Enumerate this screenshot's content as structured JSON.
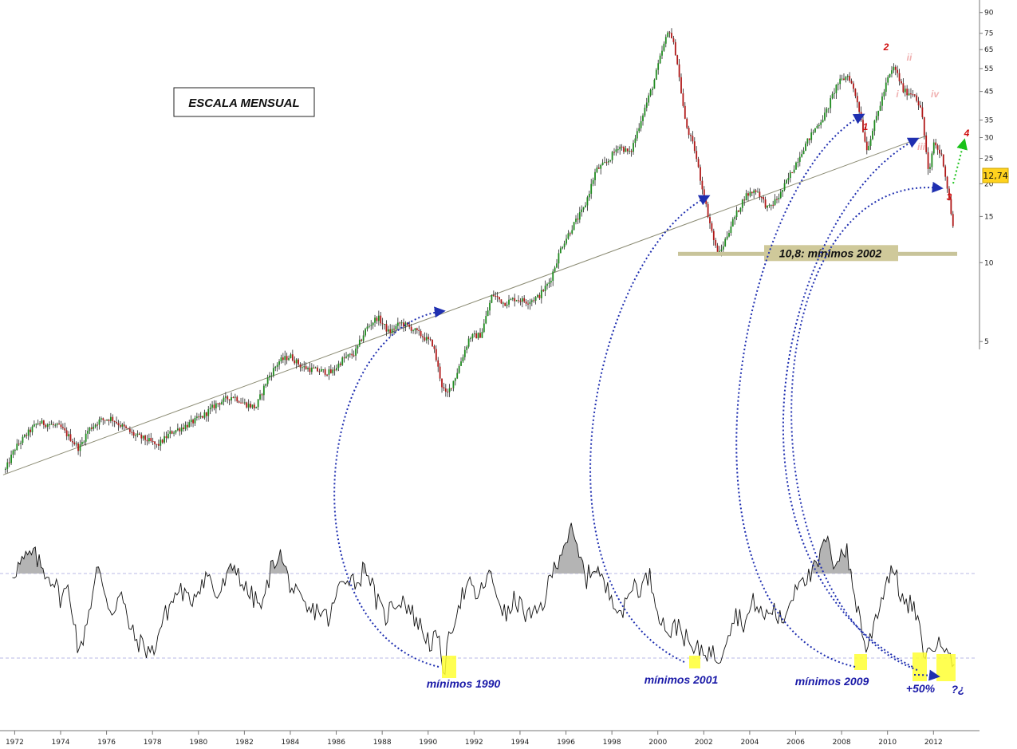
{
  "chart_data": [
    {
      "type": "candlestick",
      "panel": "price",
      "scale": "log",
      "annotation_box": "ESCALA MENSUAL",
      "support_label": "10,8: mínimos 2002",
      "support_level": 10.8,
      "price_tag": "12,74",
      "last_value": 12.74,
      "xlim": [
        1971.5,
        2013.9
      ],
      "ylim": [
        1.5,
        95
      ],
      "x_ticks": [
        "1972",
        "1974",
        "1976",
        "1978",
        "1980",
        "1982",
        "1984",
        "1986",
        "1988",
        "1990",
        "1992",
        "1994",
        "1996",
        "1998",
        "2000",
        "2002",
        "2004",
        "2006",
        "2008",
        "2010",
        "2012"
      ],
      "y_ticks": [
        "90",
        "75",
        "65",
        "55",
        "45",
        "35",
        "30",
        "25",
        "20",
        "15",
        "10",
        "5"
      ],
      "wave_labels": [
        "1",
        "2",
        "3",
        "4",
        "i",
        "ii",
        "iii",
        "iv"
      ],
      "price_path": [
        [
          1971.6,
          1.62
        ],
        [
          1972.0,
          1.95
        ],
        [
          1972.5,
          2.2
        ],
        [
          1973.0,
          2.45
        ],
        [
          1973.5,
          2.42
        ],
        [
          1974.0,
          2.35
        ],
        [
          1974.5,
          2.1
        ],
        [
          1974.8,
          1.95
        ],
        [
          1975.2,
          2.3
        ],
        [
          1975.7,
          2.5
        ],
        [
          1976.2,
          2.55
        ],
        [
          1976.6,
          2.4
        ],
        [
          1977.2,
          2.2
        ],
        [
          1977.8,
          2.1
        ],
        [
          1978.2,
          2.0
        ],
        [
          1978.8,
          2.25
        ],
        [
          1979.5,
          2.4
        ],
        [
          1980.2,
          2.6
        ],
        [
          1980.8,
          2.9
        ],
        [
          1981.5,
          3.1
        ],
        [
          1982.0,
          2.9
        ],
        [
          1982.5,
          2.8
        ],
        [
          1983.0,
          3.6
        ],
        [
          1983.5,
          4.2
        ],
        [
          1984.0,
          4.4
        ],
        [
          1984.5,
          4.0
        ],
        [
          1985.0,
          3.9
        ],
        [
          1985.8,
          3.8
        ],
        [
          1986.3,
          4.3
        ],
        [
          1986.8,
          4.5
        ],
        [
          1987.3,
          5.6
        ],
        [
          1987.8,
          6.2
        ],
        [
          1988.3,
          5.4
        ],
        [
          1988.8,
          5.9
        ],
        [
          1989.3,
          5.6
        ],
        [
          1989.8,
          5.2
        ],
        [
          1990.2,
          4.9
        ],
        [
          1990.6,
          3.4
        ],
        [
          1990.8,
          3.1
        ],
        [
          1991.2,
          3.7
        ],
        [
          1991.8,
          5.2
        ],
        [
          1992.3,
          5.3
        ],
        [
          1992.8,
          7.6
        ],
        [
          1993.3,
          7.0
        ],
        [
          1993.8,
          7.3
        ],
        [
          1994.3,
          7.1
        ],
        [
          1994.8,
          7.4
        ],
        [
          1995.3,
          8.5
        ],
        [
          1995.8,
          11.5
        ],
        [
          1996.3,
          13.8
        ],
        [
          1996.8,
          16.2
        ],
        [
          1997.3,
          22.5
        ],
        [
          1997.8,
          24.2
        ],
        [
          1998.3,
          28.0
        ],
        [
          1998.8,
          26.0
        ],
        [
          1999.3,
          36.0
        ],
        [
          1999.8,
          48.0
        ],
        [
          2000.2,
          65.0
        ],
        [
          2000.5,
          78.0
        ],
        [
          2000.8,
          62.0
        ],
        [
          2001.2,
          34.0
        ],
        [
          2001.6,
          27.0
        ],
        [
          2002.0,
          18.0
        ],
        [
          2002.5,
          11.5
        ],
        [
          2002.7,
          10.8
        ],
        [
          2003.2,
          14.0
        ],
        [
          2003.8,
          18.0
        ],
        [
          2004.3,
          19.0
        ],
        [
          2004.8,
          16.0
        ],
        [
          2005.3,
          18.0
        ],
        [
          2005.8,
          22.0
        ],
        [
          2006.3,
          27.0
        ],
        [
          2006.8,
          32.0
        ],
        [
          2007.3,
          37.0
        ],
        [
          2007.8,
          48.0
        ],
        [
          2008.3,
          52.0
        ],
        [
          2008.7,
          41.0
        ],
        [
          2009.1,
          27.0
        ],
        [
          2009.6,
          38.0
        ],
        [
          2010.0,
          50.0
        ],
        [
          2010.3,
          56.0
        ],
        [
          2010.7,
          45.0
        ],
        [
          2011.2,
          44.0
        ],
        [
          2011.5,
          37.0
        ],
        [
          2011.8,
          21.0
        ],
        [
          2012.0,
          29.0
        ],
        [
          2012.4,
          25.0
        ],
        [
          2012.7,
          17.0
        ],
        [
          2012.9,
          12.74
        ]
      ],
      "trendline": [
        [
          1971.5,
          1.55
        ],
        [
          2011.7,
          30.5
        ]
      ]
    },
    {
      "type": "line",
      "panel": "oscillator",
      "series": [
        {
          "values": [
            [
              1971.9,
              0.86
            ],
            [
              1972.4,
              0.98
            ],
            [
              1972.8,
              1.05
            ],
            [
              1973.2,
              0.9
            ],
            [
              1973.7,
              0.78
            ],
            [
              1974.0,
              0.6
            ],
            [
              1974.3,
              0.7
            ],
            [
              1974.6,
              0.4
            ],
            [
              1974.8,
              0.0
            ],
            [
              1975.1,
              0.35
            ],
            [
              1975.4,
              0.65
            ],
            [
              1975.6,
              0.9
            ],
            [
              1975.9,
              0.7
            ],
            [
              1976.2,
              0.45
            ],
            [
              1976.6,
              0.65
            ],
            [
              1976.9,
              0.4
            ],
            [
              1977.2,
              0.2
            ],
            [
              1977.6,
              0.12
            ],
            [
              1978.0,
              0.05
            ],
            [
              1978.4,
              0.35
            ],
            [
              1978.8,
              0.55
            ],
            [
              1979.2,
              0.7
            ],
            [
              1979.6,
              0.55
            ],
            [
              1980.0,
              0.72
            ],
            [
              1980.4,
              0.85
            ],
            [
              1980.8,
              0.6
            ],
            [
              1981.2,
              0.78
            ],
            [
              1981.6,
              0.95
            ],
            [
              1982.0,
              0.7
            ],
            [
              1982.4,
              0.6
            ],
            [
              1982.8,
              0.5
            ],
            [
              1983.1,
              0.85
            ],
            [
              1983.5,
              1.08
            ],
            [
              1983.9,
              0.8
            ],
            [
              1984.3,
              0.6
            ],
            [
              1984.8,
              0.45
            ],
            [
              1985.2,
              0.5
            ],
            [
              1985.7,
              0.38
            ],
            [
              1986.1,
              0.7
            ],
            [
              1986.5,
              0.85
            ],
            [
              1986.9,
              0.75
            ],
            [
              1987.3,
              0.95
            ],
            [
              1987.7,
              0.6
            ],
            [
              1988.1,
              0.4
            ],
            [
              1988.5,
              0.55
            ],
            [
              1988.9,
              0.6
            ],
            [
              1989.3,
              0.45
            ],
            [
              1989.7,
              0.3
            ],
            [
              1990.1,
              0.15
            ],
            [
              1990.4,
              0.2
            ],
            [
              1990.7,
              -0.12
            ],
            [
              1991.0,
              0.3
            ],
            [
              1991.4,
              0.6
            ],
            [
              1991.8,
              0.72
            ],
            [
              1992.2,
              0.6
            ],
            [
              1992.6,
              0.85
            ],
            [
              1993.0,
              0.65
            ],
            [
              1993.4,
              0.4
            ],
            [
              1993.8,
              0.6
            ],
            [
              1994.2,
              0.45
            ],
            [
              1994.6,
              0.4
            ],
            [
              1995.0,
              0.55
            ],
            [
              1995.4,
              0.85
            ],
            [
              1995.8,
              1.1
            ],
            [
              1996.2,
              1.28
            ],
            [
              1996.6,
              1.0
            ],
            [
              1996.9,
              0.8
            ],
            [
              1997.3,
              0.95
            ],
            [
              1997.7,
              0.7
            ],
            [
              1998.1,
              0.6
            ],
            [
              1998.5,
              0.45
            ],
            [
              1998.9,
              0.75
            ],
            [
              1999.3,
              0.7
            ],
            [
              1999.6,
              0.85
            ],
            [
              1999.9,
              0.6
            ],
            [
              2000.2,
              0.35
            ],
            [
              2000.6,
              0.25
            ],
            [
              2000.9,
              0.35
            ],
            [
              2001.3,
              0.15
            ],
            [
              2001.6,
              0.05
            ],
            [
              2001.9,
              0.1
            ],
            [
              2002.3,
              0.05
            ],
            [
              2002.7,
              0.0
            ],
            [
              2003.0,
              0.25
            ],
            [
              2003.4,
              0.45
            ],
            [
              2003.8,
              0.35
            ],
            [
              2004.2,
              0.58
            ],
            [
              2004.6,
              0.4
            ],
            [
              2005.0,
              0.5
            ],
            [
              2005.4,
              0.35
            ],
            [
              2005.8,
              0.6
            ],
            [
              2006.2,
              0.85
            ],
            [
              2006.6,
              0.8
            ],
            [
              2007.0,
              0.95
            ],
            [
              2007.3,
              1.22
            ],
            [
              2007.6,
              0.95
            ],
            [
              2007.9,
              1.05
            ],
            [
              2008.2,
              1.1
            ],
            [
              2008.5,
              0.7
            ],
            [
              2008.8,
              0.4
            ],
            [
              2009.1,
              0.05
            ],
            [
              2009.4,
              0.35
            ],
            [
              2009.8,
              0.65
            ],
            [
              2010.2,
              0.95
            ],
            [
              2010.5,
              0.7
            ],
            [
              2010.8,
              0.5
            ],
            [
              2011.1,
              0.55
            ],
            [
              2011.4,
              0.25
            ],
            [
              2011.7,
              0.0
            ],
            [
              2012.0,
              0.15
            ],
            [
              2012.3,
              0.1
            ],
            [
              2012.6,
              0.2
            ],
            [
              2012.9,
              -0.07
            ]
          ]
        }
      ],
      "upper_ref": 0.85,
      "lower_ref": 0.0,
      "highlight_labels": [
        "mínimos 1990",
        "mínimos 2001",
        "mínimos 2009",
        "+50%",
        "?¿"
      ]
    }
  ],
  "colors": {
    "background": "#ffffff",
    "candle_up": "#1e8a1e",
    "candle_down": "#b01818",
    "bar": "#222222",
    "trendline": "#8a8a72",
    "support_band": "#c8c49a",
    "support_label_bg": "#cfc99a",
    "note_blue": "#1a1aa8",
    "arrow_blue": "#1f2fb0",
    "wave_red": "#d01010",
    "wave_pink": "#f0b0b0",
    "arrow_green": "#19c219",
    "highlight_yellow": "#ffff33",
    "shade_gray": "#b4b4b4",
    "ref_line": "#b8b8e6",
    "price_tag_bg": "#ffd21e"
  }
}
